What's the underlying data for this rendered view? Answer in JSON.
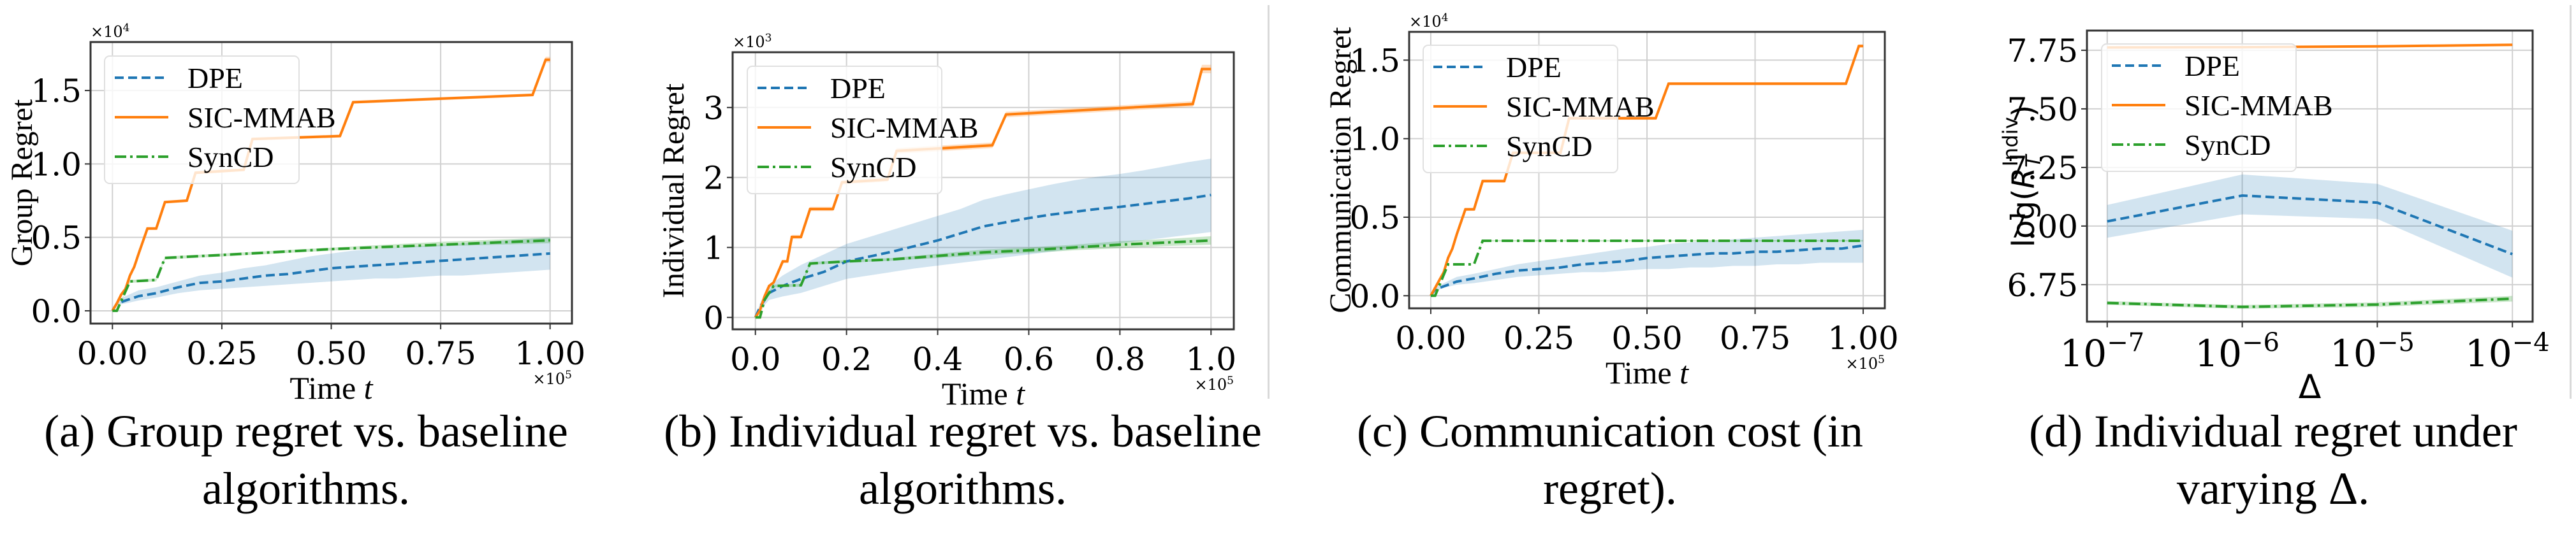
{
  "figure": {
    "colors": {
      "DPE": "#1f77b4",
      "SIC-MMAB": "#ff7f0e",
      "SynCD": "#2ca02c",
      "grid": "#d0d0d0",
      "axis": "#333333"
    },
    "legend_labels": [
      "DPE",
      "SIC-MMAB",
      "SynCD"
    ]
  },
  "chart_data": [
    {
      "id": "a",
      "type": "line",
      "caption_line1": "(a) Group regret vs. baseline",
      "caption_line2": "algorithms.",
      "xlabel": "Time t",
      "xlabel_main": "Time ",
      "xlabel_var": "t",
      "ylabel": "Group Regret",
      "y_multiplier": "×10",
      "y_multiplier_exp": "4",
      "x_multiplier": "×10",
      "x_multiplier_exp": "5",
      "xlim": [
        -0.05,
        1.05
      ],
      "ylim": [
        -0.087,
        1.83
      ],
      "xticks": [
        0.0,
        0.25,
        0.5,
        0.75,
        1.0
      ],
      "xtick_labels": [
        "0.00",
        "0.25",
        "0.50",
        "0.75",
        "1.00"
      ],
      "yticks": [
        0.0,
        0.5,
        1.0,
        1.5
      ],
      "ytick_labels": [
        "0.0",
        "0.5",
        "1.0",
        "1.5"
      ],
      "grid": true,
      "legend_position": "top-left",
      "series": [
        {
          "name": "DPE",
          "style": "dashed",
          "x": [
            0,
            0.01,
            0.03,
            0.06,
            0.1,
            0.15,
            0.2,
            0.25,
            0.3,
            0.35,
            0.4,
            0.45,
            0.5,
            0.55,
            0.6,
            0.65,
            0.7,
            0.75,
            0.8,
            0.85,
            0.9,
            0.95,
            1.0
          ],
          "y": [
            0,
            0.05,
            0.07,
            0.1,
            0.12,
            0.16,
            0.19,
            0.2,
            0.22,
            0.24,
            0.25,
            0.27,
            0.29,
            0.3,
            0.31,
            0.32,
            0.33,
            0.34,
            0.35,
            0.36,
            0.37,
            0.38,
            0.39
          ],
          "band_low": [
            0,
            0.04,
            0.05,
            0.07,
            0.09,
            0.12,
            0.14,
            0.15,
            0.16,
            0.17,
            0.18,
            0.19,
            0.2,
            0.21,
            0.22,
            0.22,
            0.23,
            0.24,
            0.24,
            0.25,
            0.26,
            0.27,
            0.28
          ],
          "band_high": [
            0,
            0.07,
            0.1,
            0.14,
            0.16,
            0.2,
            0.24,
            0.26,
            0.29,
            0.31,
            0.34,
            0.37,
            0.39,
            0.41,
            0.42,
            0.43,
            0.44,
            0.45,
            0.46,
            0.47,
            0.48,
            0.49,
            0.5
          ]
        },
        {
          "name": "SIC-MMAB",
          "style": "solid",
          "x": [
            0,
            0.01,
            0.02,
            0.03,
            0.04,
            0.05,
            0.06,
            0.08,
            0.1,
            0.12,
            0.17,
            0.19,
            0.3,
            0.32,
            0.52,
            0.55,
            0.96,
            0.99,
            1.0
          ],
          "y": [
            0,
            0.05,
            0.11,
            0.15,
            0.24,
            0.3,
            0.39,
            0.56,
            0.56,
            0.74,
            0.75,
            0.94,
            0.96,
            1.17,
            1.19,
            1.42,
            1.47,
            1.71,
            1.71
          ],
          "band_low": [
            0,
            0.04,
            0.1,
            0.14,
            0.23,
            0.29,
            0.38,
            0.55,
            0.55,
            0.73,
            0.74,
            0.93,
            0.95,
            1.16,
            1.18,
            1.41,
            1.46,
            1.69,
            1.69
          ],
          "band_high": [
            0,
            0.06,
            0.12,
            0.16,
            0.25,
            0.31,
            0.4,
            0.57,
            0.57,
            0.75,
            0.76,
            0.95,
            0.97,
            1.18,
            1.2,
            1.43,
            1.48,
            1.73,
            1.73
          ]
        },
        {
          "name": "SynCD",
          "style": "dashdot",
          "x": [
            0,
            0.01,
            0.04,
            0.1,
            0.12,
            0.25,
            0.5,
            0.75,
            1.0
          ],
          "y": [
            0,
            0.0,
            0.2,
            0.21,
            0.36,
            0.38,
            0.42,
            0.45,
            0.48
          ],
          "band_low": [
            0,
            0.0,
            0.19,
            0.2,
            0.35,
            0.37,
            0.41,
            0.44,
            0.46
          ],
          "band_high": [
            0,
            0.0,
            0.21,
            0.22,
            0.37,
            0.39,
            0.43,
            0.47,
            0.5
          ]
        }
      ]
    },
    {
      "id": "b",
      "type": "line",
      "caption_line1": "(b) Individual regret vs. baseline",
      "caption_line2": "algorithms.",
      "xlabel": "Time t",
      "xlabel_main": "Time ",
      "xlabel_var": "t",
      "ylabel": "Individual Regret",
      "y_multiplier": "×10",
      "y_multiplier_exp": "3",
      "x_multiplier": "×10",
      "x_multiplier_exp": "5",
      "xlim": [
        -0.05,
        1.05
      ],
      "ylim": [
        -0.17,
        3.79
      ],
      "xticks": [
        0.0,
        0.2,
        0.4,
        0.6,
        0.8,
        1.0
      ],
      "xtick_labels": [
        "0.0",
        "0.2",
        "0.4",
        "0.6",
        "0.8",
        "1.0"
      ],
      "yticks": [
        0,
        1,
        2,
        3
      ],
      "ytick_labels": [
        "0",
        "1",
        "2",
        "3"
      ],
      "grid": true,
      "legend_position": "top-left",
      "series": [
        {
          "name": "DPE",
          "style": "dashed",
          "x": [
            0,
            0.01,
            0.03,
            0.06,
            0.1,
            0.15,
            0.2,
            0.25,
            0.3,
            0.35,
            0.4,
            0.45,
            0.5,
            0.55,
            0.6,
            0.65,
            0.7,
            0.75,
            0.8,
            0.85,
            0.9,
            0.95,
            1.0
          ],
          "y": [
            0,
            0.15,
            0.35,
            0.45,
            0.55,
            0.65,
            0.8,
            0.87,
            0.94,
            1.02,
            1.1,
            1.2,
            1.3,
            1.36,
            1.42,
            1.47,
            1.51,
            1.55,
            1.58,
            1.62,
            1.66,
            1.7,
            1.75
          ],
          "band_low": [
            0,
            0.1,
            0.25,
            0.3,
            0.35,
            0.45,
            0.55,
            0.6,
            0.65,
            0.7,
            0.74,
            0.78,
            0.82,
            0.86,
            0.9,
            0.94,
            0.98,
            1.02,
            1.06,
            1.1,
            1.14,
            1.18,
            1.22
          ],
          "band_high": [
            0,
            0.2,
            0.45,
            0.6,
            0.75,
            0.9,
            1.05,
            1.15,
            1.25,
            1.35,
            1.45,
            1.55,
            1.68,
            1.76,
            1.83,
            1.9,
            1.96,
            2.01,
            2.05,
            2.1,
            2.16,
            2.22,
            2.27
          ]
        },
        {
          "name": "SIC-MMAB",
          "style": "solid",
          "x": [
            0,
            0.01,
            0.02,
            0.03,
            0.04,
            0.05,
            0.06,
            0.07,
            0.08,
            0.1,
            0.12,
            0.17,
            0.19,
            0.29,
            0.31,
            0.52,
            0.55,
            0.96,
            0.98,
            1.0
          ],
          "y": [
            0,
            0.1,
            0.3,
            0.45,
            0.5,
            0.65,
            0.8,
            0.8,
            1.15,
            1.15,
            1.55,
            1.55,
            1.93,
            1.97,
            2.38,
            2.46,
            2.9,
            3.05,
            3.55,
            3.55
          ],
          "band_low": [
            0,
            0.08,
            0.28,
            0.43,
            0.48,
            0.63,
            0.78,
            0.78,
            1.12,
            1.12,
            1.52,
            1.52,
            1.9,
            1.94,
            2.34,
            2.42,
            2.86,
            3.01,
            3.49,
            3.49
          ],
          "band_high": [
            0,
            0.12,
            0.32,
            0.47,
            0.52,
            0.67,
            0.82,
            0.82,
            1.18,
            1.18,
            1.58,
            1.58,
            1.96,
            2.0,
            2.42,
            2.5,
            2.94,
            3.09,
            3.61,
            3.61
          ]
        },
        {
          "name": "SynCD",
          "style": "dashdot",
          "x": [
            0,
            0.01,
            0.02,
            0.04,
            0.1,
            0.12,
            0.2,
            0.3,
            0.4,
            0.5,
            0.6,
            0.7,
            0.8,
            0.9,
            1.0
          ],
          "y": [
            0,
            0.0,
            0.25,
            0.45,
            0.46,
            0.77,
            0.8,
            0.83,
            0.88,
            0.93,
            0.96,
            1.0,
            1.04,
            1.07,
            1.1
          ],
          "band_low": [
            0,
            0.0,
            0.23,
            0.43,
            0.44,
            0.75,
            0.78,
            0.81,
            0.85,
            0.89,
            0.92,
            0.96,
            0.99,
            1.02,
            1.04
          ],
          "band_high": [
            0,
            0.0,
            0.27,
            0.47,
            0.48,
            0.79,
            0.82,
            0.85,
            0.91,
            0.97,
            1.0,
            1.04,
            1.09,
            1.12,
            1.16
          ]
        }
      ]
    },
    {
      "id": "c",
      "type": "line",
      "caption_line1": "(c) Communication cost (in",
      "caption_line2": "regret).",
      "xlabel": "Time t",
      "xlabel_main": "Time ",
      "xlabel_var": "t",
      "ylabel": "Communication Regret",
      "y_multiplier": "×10",
      "y_multiplier_exp": "4",
      "x_multiplier": "×10",
      "x_multiplier_exp": "5",
      "xlim": [
        -0.05,
        1.05
      ],
      "ylim": [
        -0.08,
        1.68
      ],
      "xticks": [
        0.0,
        0.25,
        0.5,
        0.75,
        1.0
      ],
      "xtick_labels": [
        "0.00",
        "0.25",
        "0.50",
        "0.75",
        "1.00"
      ],
      "yticks": [
        0.0,
        0.5,
        1.0,
        1.5
      ],
      "ytick_labels": [
        "0.0",
        "0.5",
        "1.0",
        "1.5"
      ],
      "grid": true,
      "legend_position": "top-left",
      "series": [
        {
          "name": "DPE",
          "style": "dashed",
          "x": [
            0,
            0.01,
            0.03,
            0.06,
            0.1,
            0.15,
            0.2,
            0.25,
            0.3,
            0.35,
            0.4,
            0.45,
            0.5,
            0.55,
            0.6,
            0.65,
            0.7,
            0.75,
            0.8,
            0.85,
            0.9,
            0.95,
            1.0
          ],
          "y": [
            0,
            0.04,
            0.06,
            0.09,
            0.11,
            0.14,
            0.16,
            0.17,
            0.18,
            0.2,
            0.21,
            0.22,
            0.24,
            0.25,
            0.26,
            0.27,
            0.27,
            0.28,
            0.28,
            0.29,
            0.3,
            0.3,
            0.32
          ],
          "band_low": [
            0,
            0.03,
            0.05,
            0.07,
            0.08,
            0.1,
            0.12,
            0.13,
            0.14,
            0.15,
            0.15,
            0.16,
            0.17,
            0.17,
            0.18,
            0.18,
            0.19,
            0.19,
            0.2,
            0.2,
            0.21,
            0.21,
            0.21
          ],
          "band_high": [
            0,
            0.05,
            0.08,
            0.12,
            0.14,
            0.17,
            0.2,
            0.22,
            0.24,
            0.26,
            0.28,
            0.3,
            0.31,
            0.33,
            0.34,
            0.35,
            0.36,
            0.37,
            0.38,
            0.39,
            0.4,
            0.41,
            0.42
          ]
        },
        {
          "name": "SIC-MMAB",
          "style": "solid",
          "x": [
            0,
            0.01,
            0.02,
            0.03,
            0.04,
            0.05,
            0.06,
            0.08,
            0.1,
            0.12,
            0.17,
            0.19,
            0.3,
            0.32,
            0.52,
            0.55,
            0.96,
            0.99,
            1.0
          ],
          "y": [
            0,
            0.05,
            0.1,
            0.15,
            0.24,
            0.3,
            0.39,
            0.55,
            0.55,
            0.73,
            0.73,
            0.91,
            0.91,
            1.13,
            1.13,
            1.35,
            1.35,
            1.59,
            1.59
          ],
          "band_low": [
            0,
            0.04,
            0.09,
            0.14,
            0.23,
            0.29,
            0.38,
            0.54,
            0.54,
            0.72,
            0.72,
            0.9,
            0.9,
            1.12,
            1.12,
            1.34,
            1.34,
            1.58,
            1.58
          ],
          "band_high": [
            0,
            0.06,
            0.11,
            0.16,
            0.25,
            0.31,
            0.4,
            0.56,
            0.56,
            0.74,
            0.74,
            0.92,
            0.92,
            1.14,
            1.14,
            1.36,
            1.36,
            1.6,
            1.6
          ]
        },
        {
          "name": "SynCD",
          "style": "dashdot",
          "x": [
            0,
            0.01,
            0.04,
            0.1,
            0.12,
            0.25,
            0.5,
            0.75,
            1.0
          ],
          "y": [
            0,
            0.0,
            0.2,
            0.2,
            0.35,
            0.35,
            0.35,
            0.35,
            0.35
          ],
          "band_low": [
            0,
            0.0,
            0.2,
            0.2,
            0.345,
            0.345,
            0.345,
            0.345,
            0.345
          ],
          "band_high": [
            0,
            0.0,
            0.2,
            0.2,
            0.355,
            0.355,
            0.355,
            0.355,
            0.355
          ]
        }
      ]
    },
    {
      "id": "d",
      "type": "line",
      "caption_line1": "(d) Individual regret under",
      "caption_line2": "varying Δ.",
      "xlabel": "Δ",
      "ylabel": "log(R_T^Indiv)",
      "ylabel_parts": {
        "prefix": "log(",
        "base": "R",
        "sub": "T",
        "sup": "Indiv",
        "suffix": ")"
      },
      "xscale": "log",
      "xlim_log10": [
        -7.15,
        -3.85
      ],
      "ylim": [
        6.592,
        7.834
      ],
      "xticks_log10": [
        -7,
        -6,
        -5,
        -4
      ],
      "xtick_labels": [
        {
          "base": "10",
          "exp": "−7"
        },
        {
          "base": "10",
          "exp": "−6"
        },
        {
          "base": "10",
          "exp": "−5"
        },
        {
          "base": "10",
          "exp": "−4"
        }
      ],
      "yticks": [
        6.75,
        7.0,
        7.25,
        7.5,
        7.75
      ],
      "ytick_labels": [
        "6.75",
        "7.00",
        "7.25",
        "7.50",
        "7.75"
      ],
      "grid": true,
      "legend_position": "top-left",
      "series": [
        {
          "name": "DPE",
          "style": "dashed",
          "x_log10": [
            -7,
            -6,
            -5,
            -4
          ],
          "y": [
            7.02,
            7.13,
            7.1,
            6.88
          ],
          "band_low": [
            6.95,
            7.05,
            7.03,
            6.78
          ],
          "band_high": [
            7.09,
            7.22,
            7.18,
            6.98
          ]
        },
        {
          "name": "SIC-MMAB",
          "style": "solid",
          "x_log10": [
            -7,
            -6,
            -5,
            -4
          ],
          "y": [
            7.762,
            7.763,
            7.767,
            7.773
          ],
          "band_low": [
            7.757,
            7.758,
            7.763,
            7.769
          ],
          "band_high": [
            7.767,
            7.768,
            7.771,
            7.777
          ]
        },
        {
          "name": "SynCD",
          "style": "dashdot",
          "x_log10": [
            -7,
            -6,
            -5,
            -4
          ],
          "y": [
            6.672,
            6.655,
            6.665,
            6.69
          ],
          "band_low": [
            6.664,
            6.647,
            6.655,
            6.678
          ],
          "band_high": [
            6.68,
            6.663,
            6.675,
            6.702
          ]
        }
      ]
    }
  ]
}
